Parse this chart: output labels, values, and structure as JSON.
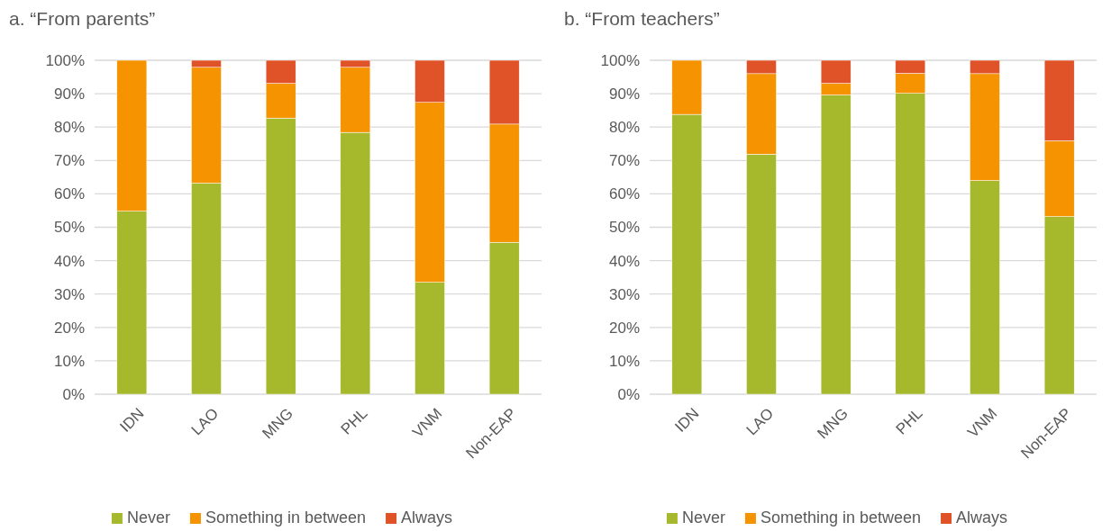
{
  "chart_data": [
    {
      "type": "bar",
      "title": "a. “From parents”",
      "categories": [
        "IDN",
        "LAO",
        "MNG",
        "PHL",
        "VNM",
        "Non-EAP"
      ],
      "stacked": true,
      "ylim": [
        0,
        100
      ],
      "yticks": [
        {
          "value": 0,
          "label": "0%"
        },
        {
          "value": 10,
          "label": "10%"
        },
        {
          "value": 20,
          "label": "20%"
        },
        {
          "value": 30,
          "label": "30%"
        },
        {
          "value": 40,
          "label": "40%"
        },
        {
          "value": 50,
          "label": "50%"
        },
        {
          "value": 60,
          "label": "60%"
        },
        {
          "value": 70,
          "label": "70%"
        },
        {
          "value": 80,
          "label": "80%"
        },
        {
          "value": 90,
          "label": "90%"
        },
        {
          "value": 100,
          "label": "100%"
        }
      ],
      "grid": "y",
      "legend": "bottom",
      "series": [
        {
          "name": "Never",
          "color": "#a6b82b",
          "values": [
            54.8,
            63.2,
            82.7,
            78.4,
            33.5,
            45.5
          ]
        },
        {
          "name": "Something in between",
          "color": "#f59300",
          "values": [
            45.2,
            34.7,
            10.4,
            19.5,
            53.9,
            35.4
          ]
        },
        {
          "name": "Always",
          "color": "#e05227",
          "values": [
            0,
            2.1,
            6.9,
            2.1,
            12.6,
            19.1
          ]
        }
      ]
    },
    {
      "type": "bar",
      "title": "b. “From teachers”",
      "categories": [
        "IDN",
        "LAO",
        "MNG",
        "PHL",
        "VNM",
        "Non-EAP"
      ],
      "stacked": true,
      "ylim": [
        0,
        100
      ],
      "yticks": [
        {
          "value": 0,
          "label": "0%"
        },
        {
          "value": 10,
          "label": "10%"
        },
        {
          "value": 20,
          "label": "20%"
        },
        {
          "value": 30,
          "label": "30%"
        },
        {
          "value": 40,
          "label": "40%"
        },
        {
          "value": 50,
          "label": "50%"
        },
        {
          "value": 60,
          "label": "60%"
        },
        {
          "value": 70,
          "label": "70%"
        },
        {
          "value": 80,
          "label": "80%"
        },
        {
          "value": 90,
          "label": "90%"
        },
        {
          "value": 100,
          "label": "100%"
        }
      ],
      "grid": "y",
      "legend": "bottom",
      "series": [
        {
          "name": "Never",
          "color": "#a6b82b",
          "values": [
            83.8,
            71.9,
            89.6,
            90.1,
            64.0,
            53.2
          ]
        },
        {
          "name": "Something in between",
          "color": "#f59300",
          "values": [
            16.2,
            24.1,
            3.5,
            6.0,
            32.0,
            22.7
          ]
        },
        {
          "name": "Always",
          "color": "#e05227",
          "values": [
            0,
            4.0,
            6.9,
            3.9,
            4.0,
            24.1
          ]
        }
      ]
    }
  ]
}
